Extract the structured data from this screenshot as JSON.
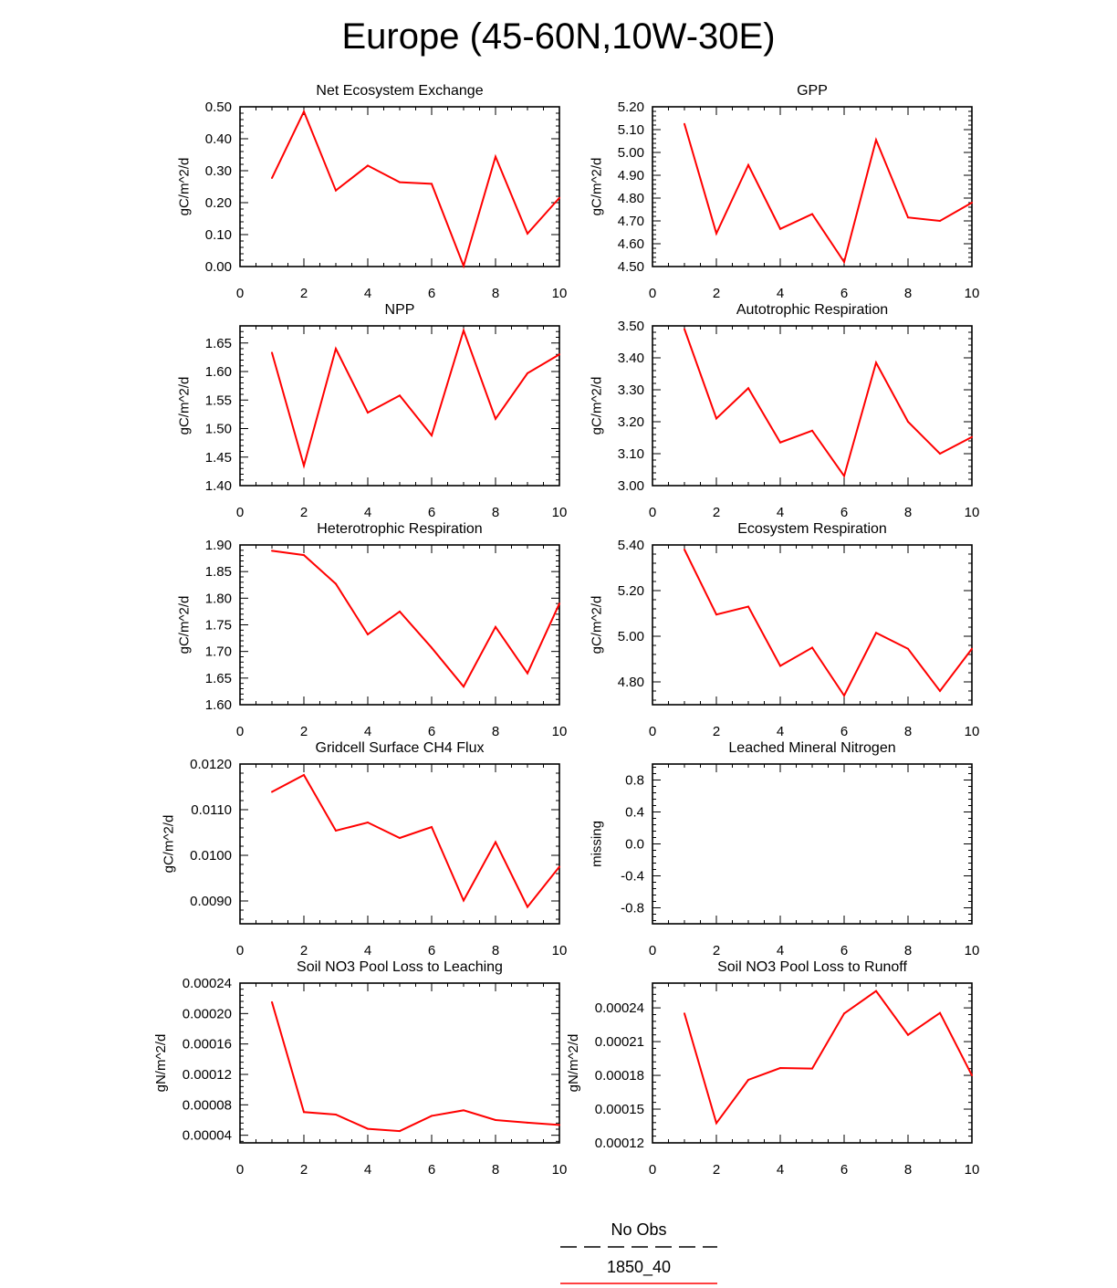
{
  "title": "Europe (45-60N,10W-30E)",
  "colors": {
    "model": "#ff0000",
    "obs": "#000000",
    "axis": "#000000"
  },
  "legend": {
    "obs_label": "No Obs",
    "model_label": "1850_40"
  },
  "chart_data": [
    {
      "type": "line",
      "title": "Net Ecosystem Exchange",
      "ylabel": "gC/m^2/d",
      "xlim": [
        0,
        10
      ],
      "xticks": [
        0,
        2,
        4,
        6,
        8,
        10
      ],
      "ylim": [
        0.0,
        0.5
      ],
      "yticks": [
        0.0,
        0.1,
        0.2,
        0.3,
        0.4,
        0.5
      ],
      "ytick_labels": [
        "0.00",
        "0.10",
        "0.20",
        "0.30",
        "0.40",
        "0.50"
      ],
      "series": [
        {
          "name": "1850_40",
          "x": [
            1,
            2,
            3,
            4,
            5,
            6,
            7,
            8,
            9,
            10
          ],
          "values": [
            0.277,
            0.485,
            0.238,
            0.316,
            0.264,
            0.259,
            0.002,
            0.344,
            0.103,
            0.215
          ]
        }
      ]
    },
    {
      "type": "line",
      "title": "GPP",
      "ylabel": "gC/m^2/d",
      "xlim": [
        0,
        10
      ],
      "xticks": [
        0,
        2,
        4,
        6,
        8,
        10
      ],
      "ylim": [
        4.5,
        5.2
      ],
      "yticks": [
        4.5,
        4.6,
        4.7,
        4.8,
        4.9,
        5.0,
        5.1,
        5.2
      ],
      "ytick_labels": [
        "4.50",
        "4.60",
        "4.70",
        "4.80",
        "4.90",
        "5.00",
        "5.10",
        "5.20"
      ],
      "series": [
        {
          "name": "1850_40",
          "x": [
            1,
            2,
            3,
            4,
            5,
            6,
            7,
            8,
            9,
            10
          ],
          "values": [
            5.125,
            4.645,
            4.945,
            4.665,
            4.73,
            4.52,
            5.055,
            4.715,
            4.7,
            4.78
          ]
        }
      ]
    },
    {
      "type": "line",
      "title": "NPP",
      "ylabel": "gC/m^2/d",
      "xlim": [
        0,
        10
      ],
      "xticks": [
        0,
        2,
        4,
        6,
        8,
        10
      ],
      "ylim": [
        1.4,
        1.68
      ],
      "yticks": [
        1.4,
        1.45,
        1.5,
        1.55,
        1.6,
        1.65
      ],
      "ytick_labels": [
        "1.40",
        "1.45",
        "1.50",
        "1.55",
        "1.60",
        "1.65"
      ],
      "series": [
        {
          "name": "1850_40",
          "x": [
            1,
            2,
            3,
            4,
            5,
            6,
            7,
            8,
            9,
            10
          ],
          "values": [
            1.633,
            1.435,
            1.64,
            1.528,
            1.558,
            1.488,
            1.672,
            1.517,
            1.597,
            1.63
          ]
        }
      ]
    },
    {
      "type": "line",
      "title": "Autotrophic Respiration",
      "ylabel": "gC/m^2/d",
      "xlim": [
        0,
        10
      ],
      "xticks": [
        0,
        2,
        4,
        6,
        8,
        10
      ],
      "ylim": [
        3.0,
        3.5
      ],
      "yticks": [
        3.0,
        3.1,
        3.2,
        3.3,
        3.4,
        3.5
      ],
      "ytick_labels": [
        "3.00",
        "3.10",
        "3.20",
        "3.30",
        "3.40",
        "3.50"
      ],
      "series": [
        {
          "name": "1850_40",
          "x": [
            1,
            2,
            3,
            4,
            5,
            6,
            7,
            8,
            9,
            10
          ],
          "values": [
            3.49,
            3.21,
            3.305,
            3.135,
            3.172,
            3.03,
            3.385,
            3.2,
            3.1,
            3.152
          ]
        }
      ]
    },
    {
      "type": "line",
      "title": "Heterotrophic Respiration",
      "ylabel": "gC/m^2/d",
      "xlim": [
        0,
        10
      ],
      "xticks": [
        0,
        2,
        4,
        6,
        8,
        10
      ],
      "ylim": [
        1.6,
        1.9
      ],
      "yticks": [
        1.6,
        1.65,
        1.7,
        1.75,
        1.8,
        1.85,
        1.9
      ],
      "ytick_labels": [
        "1.60",
        "1.65",
        "1.70",
        "1.75",
        "1.80",
        "1.85",
        "1.90"
      ],
      "series": [
        {
          "name": "1850_40",
          "x": [
            1,
            2,
            3,
            4,
            5,
            6,
            7,
            8,
            9,
            10
          ],
          "values": [
            1.889,
            1.881,
            1.827,
            1.732,
            1.775,
            1.707,
            1.634,
            1.746,
            1.659,
            1.79
          ]
        }
      ]
    },
    {
      "type": "line",
      "title": "Ecosystem Respiration",
      "ylabel": "gC/m^2/d",
      "xlim": [
        0,
        10
      ],
      "xticks": [
        0,
        2,
        4,
        6,
        8,
        10
      ],
      "ylim": [
        4.7,
        5.4
      ],
      "yticks": [
        4.8,
        5.0,
        5.2,
        5.4
      ],
      "ytick_labels": [
        "4.80",
        "5.00",
        "5.20",
        "5.40"
      ],
      "series": [
        {
          "name": "1850_40",
          "x": [
            1,
            2,
            3,
            4,
            5,
            6,
            7,
            8,
            9,
            10
          ],
          "values": [
            5.38,
            5.095,
            5.13,
            4.87,
            4.95,
            4.74,
            5.015,
            4.945,
            4.76,
            4.945
          ]
        }
      ]
    },
    {
      "type": "line",
      "title": "Gridcell Surface CH4 Flux",
      "ylabel": "gC/m^2/d",
      "xlim": [
        0,
        10
      ],
      "xticks": [
        0,
        2,
        4,
        6,
        8,
        10
      ],
      "ylim": [
        0.0085,
        0.012
      ],
      "yticks": [
        0.009,
        0.01,
        0.011,
        0.012
      ],
      "ytick_labels": [
        "0.0090",
        "0.0100",
        "0.0110",
        "0.0120"
      ],
      "series": [
        {
          "name": "1850_40",
          "x": [
            1,
            2,
            3,
            4,
            5,
            6,
            7,
            8,
            9,
            10
          ],
          "values": [
            0.01139,
            0.01176,
            0.01054,
            0.01072,
            0.01038,
            0.01062,
            0.00901,
            0.01029,
            0.00887,
            0.00975
          ]
        }
      ]
    },
    {
      "type": "line",
      "title": "Leached Mineral Nitrogen",
      "ylabel": "missing",
      "xlim": [
        0,
        10
      ],
      "xticks": [
        0,
        2,
        4,
        6,
        8,
        10
      ],
      "ylim": [
        -1.0,
        1.0
      ],
      "yticks": [
        -0.8,
        -0.4,
        0.0,
        0.4,
        0.8
      ],
      "ytick_labels": [
        "-0.8",
        "-0.4",
        "0.0",
        "0.4",
        "0.8"
      ],
      "series": []
    },
    {
      "type": "line",
      "title": "Soil NO3 Pool Loss to Leaching",
      "ylabel": "gN/m^2/d",
      "xlim": [
        0,
        10
      ],
      "xticks": [
        0,
        2,
        4,
        6,
        8,
        10
      ],
      "ylim": [
        3e-05,
        0.00024
      ],
      "yticks": [
        4e-05,
        8e-05,
        0.00012,
        0.00016,
        0.0002,
        0.00024
      ],
      "ytick_labels": [
        "0.00004",
        "0.00008",
        "0.00012",
        "0.00016",
        "0.00020",
        "0.00024"
      ],
      "series": [
        {
          "name": "1850_40",
          "x": [
            1,
            2,
            3,
            4,
            5,
            6,
            7,
            8,
            9,
            10
          ],
          "values": [
            0.000215,
            7.05e-05,
            6.72e-05,
            4.85e-05,
            4.55e-05,
            6.55e-05,
            7.28e-05,
            6e-05,
            5.65e-05,
            5.35e-05
          ]
        }
      ]
    },
    {
      "type": "line",
      "title": "Soil NO3 Pool Loss to Runoff",
      "ylabel": "gN/m^2/d",
      "xlim": [
        0,
        10
      ],
      "xticks": [
        0,
        2,
        4,
        6,
        8,
        10
      ],
      "ylim": [
        0.00012,
        0.000262
      ],
      "yticks": [
        0.00012,
        0.00015,
        0.00018,
        0.00021,
        0.00024
      ],
      "ytick_labels": [
        "0.00012",
        "0.00015",
        "0.00018",
        "0.00021",
        "0.00024"
      ],
      "series": [
        {
          "name": "1850_40",
          "x": [
            1,
            2,
            3,
            4,
            5,
            6,
            7,
            8,
            9,
            10
          ],
          "values": [
            0.000235,
            0.0001375,
            0.000176,
            0.0001865,
            0.000186,
            0.000235,
            0.000255,
            0.000216,
            0.0002355,
            0.00018
          ]
        }
      ]
    }
  ]
}
